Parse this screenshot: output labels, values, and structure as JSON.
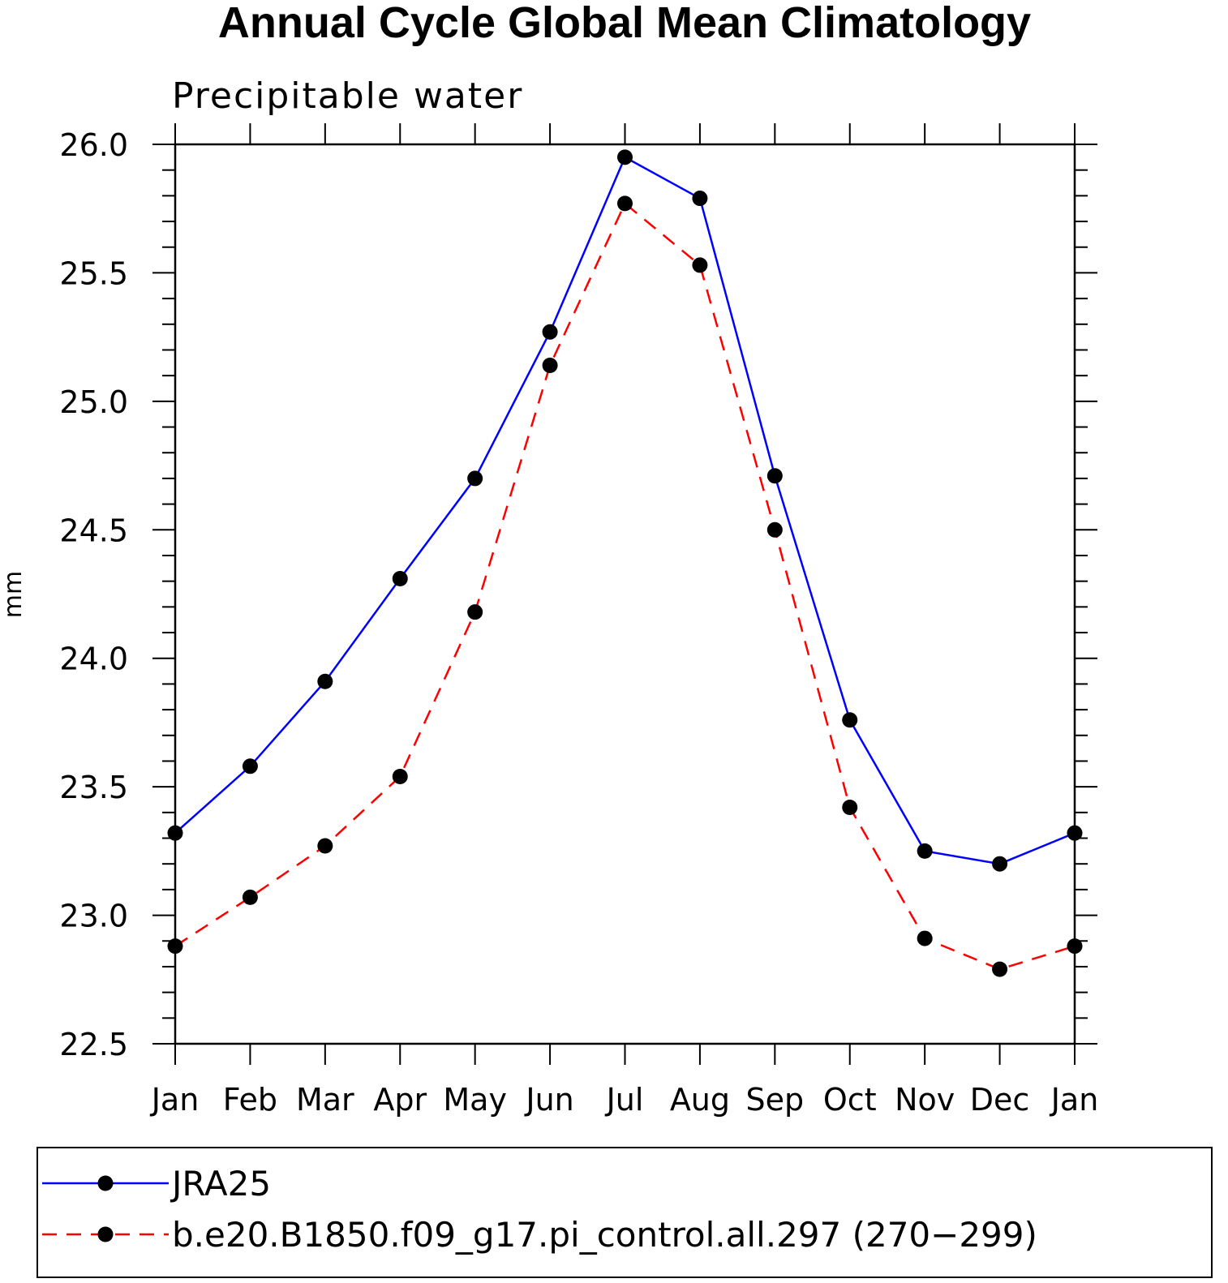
{
  "chart_data": {
    "type": "line",
    "title": "Annual Cycle Global Mean Climatology",
    "subtitle": "Precipitable water",
    "ylabel": "mm",
    "xlabel": "",
    "categories": [
      "Jan",
      "Feb",
      "Mar",
      "Apr",
      "May",
      "Jun",
      "Jul",
      "Aug",
      "Sep",
      "Oct",
      "Nov",
      "Dec",
      "Jan"
    ],
    "ylim": [
      22.5,
      26.0
    ],
    "yticks": [
      "22.5",
      "23.0",
      "23.5",
      "24.0",
      "24.5",
      "25.0",
      "25.5",
      "26.0"
    ],
    "series": [
      {
        "name": "JRA25",
        "color": "#0000ff",
        "dash": "solid",
        "values": [
          23.32,
          23.58,
          23.91,
          24.31,
          24.7,
          25.27,
          25.95,
          25.79,
          24.71,
          23.76,
          23.25,
          23.2,
          23.32
        ]
      },
      {
        "name": "b.e20.B1850.f09_g17.pi_control.all.297 (270−299)",
        "color": "#ff0000",
        "dash": "dashed",
        "values": [
          22.88,
          23.07,
          23.27,
          23.54,
          24.18,
          25.14,
          25.77,
          25.53,
          24.5,
          23.42,
          22.91,
          22.79,
          22.88
        ]
      }
    ],
    "legend_position": "bottom"
  }
}
